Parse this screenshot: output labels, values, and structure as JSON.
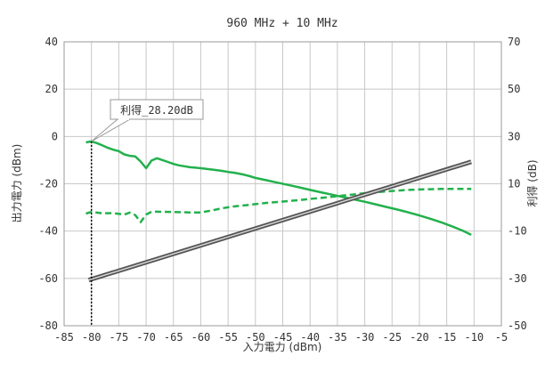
{
  "chart_data": {
    "type": "line",
    "title": "960 MHz + 10 MHz",
    "xlabel": "入力電力 (dBm)",
    "ylabel_left": "出力電力 (dBm)",
    "ylabel_right": "利得 (dB)",
    "xlim": [
      -85,
      -5
    ],
    "ylim_left": [
      -80,
      40
    ],
    "ylim_right": [
      -50,
      70
    ],
    "xticks": [
      -85,
      -80,
      -75,
      -70,
      -65,
      -60,
      -55,
      -50,
      -45,
      -40,
      -35,
      -30,
      -25,
      -20,
      -15,
      -10,
      -5
    ],
    "yticks_left": [
      -80,
      -60,
      -40,
      -20,
      0,
      20,
      40
    ],
    "yticks_right": [
      -50,
      -30,
      -10,
      10,
      30,
      50,
      70
    ],
    "grid": true,
    "annotation": {
      "text": "利得_28.20dB",
      "x": -80,
      "y_left": -2.1
    },
    "series": [
      {
        "axis": "left",
        "color": "#22b14c",
        "style": "solid",
        "x": [
          -81,
          -80,
          -79,
          -78,
          -77,
          -76,
          -75,
          -74,
          -73,
          -72,
          -71,
          -70,
          -69,
          -68,
          -67,
          -66,
          -65,
          -64,
          -63,
          -62,
          -61,
          -60,
          -59,
          -58,
          -57,
          -56,
          -55,
          -54,
          -53,
          -52,
          -51,
          -50,
          -48,
          -46,
          -44,
          -42,
          -40,
          -38,
          -36,
          -34,
          -32,
          -30,
          -28,
          -26,
          -24,
          -22,
          -20,
          -18,
          -16,
          -14,
          -12,
          -10.5
        ],
        "y": [
          -2.5,
          -2.1,
          -2.8,
          -3.8,
          -4.8,
          -5.6,
          -6.2,
          -7.6,
          -8.2,
          -8.4,
          -10.6,
          -13.4,
          -10.2,
          -9.2,
          -10,
          -10.8,
          -11.6,
          -12.2,
          -12.6,
          -13,
          -13.2,
          -13.4,
          -13.7,
          -14,
          -14.3,
          -14.6,
          -15,
          -15.3,
          -15.7,
          -16.2,
          -16.8,
          -17.5,
          -18.5,
          -19.5,
          -20.5,
          -21.5,
          -22.6,
          -23.6,
          -24.6,
          -25.6,
          -26.6,
          -27.6,
          -28.7,
          -29.8,
          -30.9,
          -32.1,
          -33.4,
          -34.8,
          -36.3,
          -38,
          -39.9,
          -41.6
        ]
      },
      {
        "axis": "right",
        "color": "#22b14c",
        "style": "dashed",
        "x": [
          -81,
          -80,
          -79,
          -78,
          -76,
          -74,
          -73,
          -72,
          -71,
          -70,
          -69,
          -68,
          -66,
          -64,
          -62,
          -60,
          -58,
          -56,
          -54,
          -52,
          -50,
          -48,
          -46,
          -44,
          -42,
          -40,
          -38,
          -36,
          -34,
          -32,
          -30,
          -28,
          -26,
          -24,
          -22,
          -20,
          -18,
          -16,
          -14,
          -12,
          -10.5
        ],
        "y": [
          -2.6,
          -1.9,
          -2.2,
          -2.5,
          -2.4,
          -3,
          -2.2,
          -3.2,
          -6.2,
          -3,
          -1.8,
          -1.8,
          -1.9,
          -2,
          -2.1,
          -2.1,
          -1.3,
          -0.3,
          0.4,
          0.9,
          1.4,
          1.9,
          2.3,
          2.7,
          3.1,
          3.6,
          4,
          4.5,
          5,
          5.5,
          6,
          6.4,
          6.8,
          7.1,
          7.4,
          7.6,
          7.7,
          7.8,
          7.8,
          7.8,
          7.8
        ]
      },
      {
        "axis": "left",
        "color": "#555555",
        "style": "solid-double",
        "x": [
          -80.5,
          -10.5
        ],
        "y": [
          -60.7,
          -10.7
        ]
      }
    ]
  }
}
